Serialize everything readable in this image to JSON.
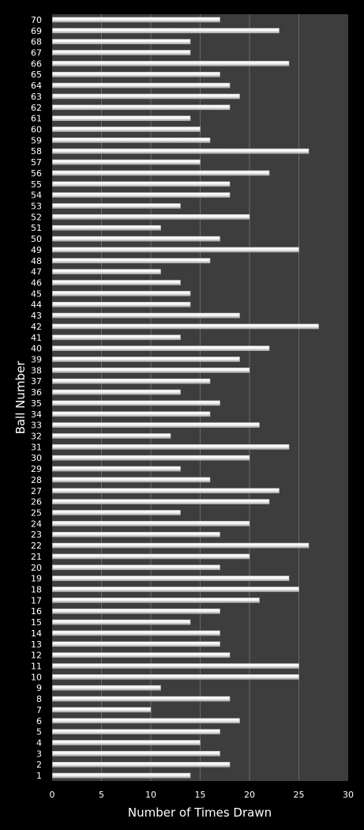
{
  "chart_data": {
    "type": "bar",
    "orientation": "horizontal",
    "xlabel": "Number of Times Drawn",
    "ylabel": "Ball Number",
    "xlim": [
      0,
      30
    ],
    "xticks": [
      0,
      5,
      10,
      15,
      20,
      25,
      30
    ],
    "grid": true,
    "legend": "none",
    "colors": {
      "background": "#000000",
      "plot_area": "#3d3d3d",
      "gridline": "#6a6a6a",
      "bar": "#ffffff",
      "text": "#ffffff"
    },
    "categories": [
      "1",
      "2",
      "3",
      "4",
      "5",
      "6",
      "7",
      "8",
      "9",
      "10",
      "11",
      "12",
      "13",
      "14",
      "15",
      "16",
      "17",
      "18",
      "19",
      "20",
      "21",
      "22",
      "23",
      "24",
      "25",
      "26",
      "27",
      "28",
      "29",
      "30",
      "31",
      "32",
      "33",
      "34",
      "35",
      "36",
      "37",
      "38",
      "39",
      "40",
      "41",
      "42",
      "43",
      "44",
      "45",
      "46",
      "47",
      "48",
      "49",
      "50",
      "51",
      "52",
      "53",
      "54",
      "55",
      "56",
      "57",
      "58",
      "59",
      "60",
      "61",
      "62",
      "63",
      "64",
      "65",
      "66",
      "67",
      "68",
      "69",
      "70"
    ],
    "values": [
      14,
      18,
      17,
      15,
      17,
      19,
      10,
      18,
      11,
      25,
      25,
      18,
      17,
      17,
      14,
      17,
      21,
      25,
      24,
      17,
      20,
      26,
      17,
      20,
      13,
      22,
      23,
      16,
      13,
      20,
      24,
      12,
      21,
      16,
      17,
      13,
      16,
      20,
      19,
      22,
      13,
      27,
      19,
      14,
      14,
      13,
      11,
      16,
      25,
      17,
      11,
      20,
      13,
      18,
      18,
      22,
      15,
      26,
      16,
      15,
      14,
      18,
      19,
      18,
      17,
      24,
      14,
      14,
      23,
      17
    ]
  }
}
